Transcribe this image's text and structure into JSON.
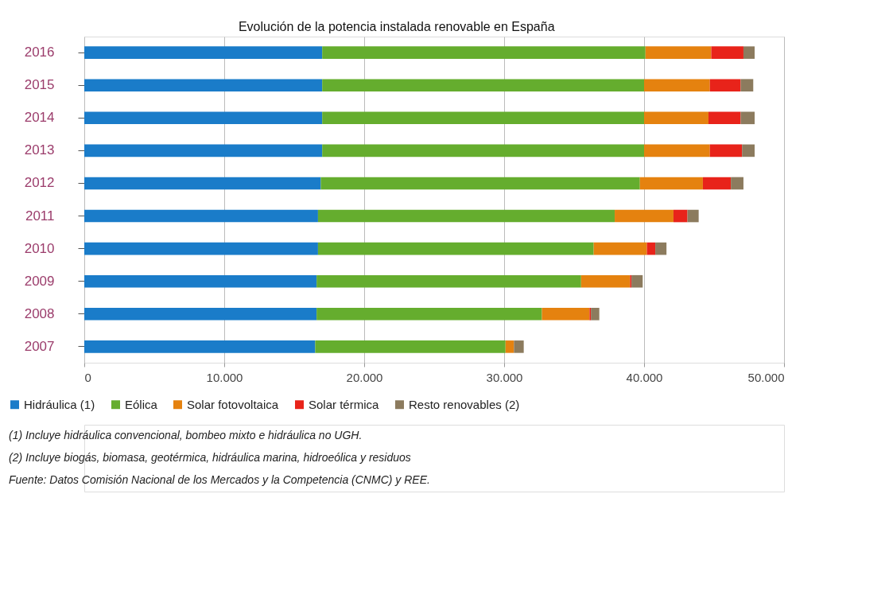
{
  "chart_data": {
    "type": "bar",
    "orientation": "horizontal",
    "stacked": true,
    "title": "Evolución de la potencia instalada renovable en España",
    "categories": [
      "2016",
      "2015",
      "2014",
      "2013",
      "2012",
      "2011",
      "2010",
      "2009",
      "2008",
      "2007"
    ],
    "series": [
      {
        "name": "Hidráulica (1)",
        "color": "#1a7cc9",
        "values": [
          17000,
          17000,
          17000,
          17000,
          16900,
          16700,
          16700,
          16600,
          16600,
          16500
        ]
      },
      {
        "name": "Eólica",
        "color": "#65ad2e",
        "values": [
          23100,
          23000,
          23000,
          23000,
          22800,
          21200,
          19700,
          18900,
          16100,
          13600
        ]
      },
      {
        "name": "Solar fotovoltaica",
        "color": "#e5820f",
        "values": [
          4700,
          4700,
          4600,
          4700,
          4500,
          4200,
          3800,
          3500,
          3400,
          600
        ]
      },
      {
        "name": "Solar térmica",
        "color": "#e8231a",
        "values": [
          2300,
          2200,
          2300,
          2300,
          2000,
          1000,
          600,
          100,
          100,
          0
        ]
      },
      {
        "name": "Resto renovables (2)",
        "color": "#8c7b5e",
        "values": [
          800,
          900,
          1000,
          900,
          900,
          800,
          800,
          800,
          600,
          700
        ]
      }
    ],
    "xlim": [
      0,
      50000
    ],
    "xticks": [
      0,
      {
        "value": 10000,
        "label": "10.000"
      },
      {
        "value": 20000,
        "label": "20.000"
      },
      {
        "value": 30000,
        "label": "30.000"
      },
      {
        "value": 40000,
        "label": "40.000"
      },
      {
        "value": 50000,
        "label": "50.000"
      }
    ],
    "grid": "x",
    "legend": "bottom left",
    "annotations": [
      "(1) Incluye hidráulica convencional, bombeo mixto e hidráulica no UGH.",
      "(2) Incluye biogás, biomasa, geotérmica, hidráulica marina, hidroeólica y residuos",
      "Fuente: Datos Comisión Nacional de los Mercados y la Competencia (CNMC) y REE."
    ]
  }
}
